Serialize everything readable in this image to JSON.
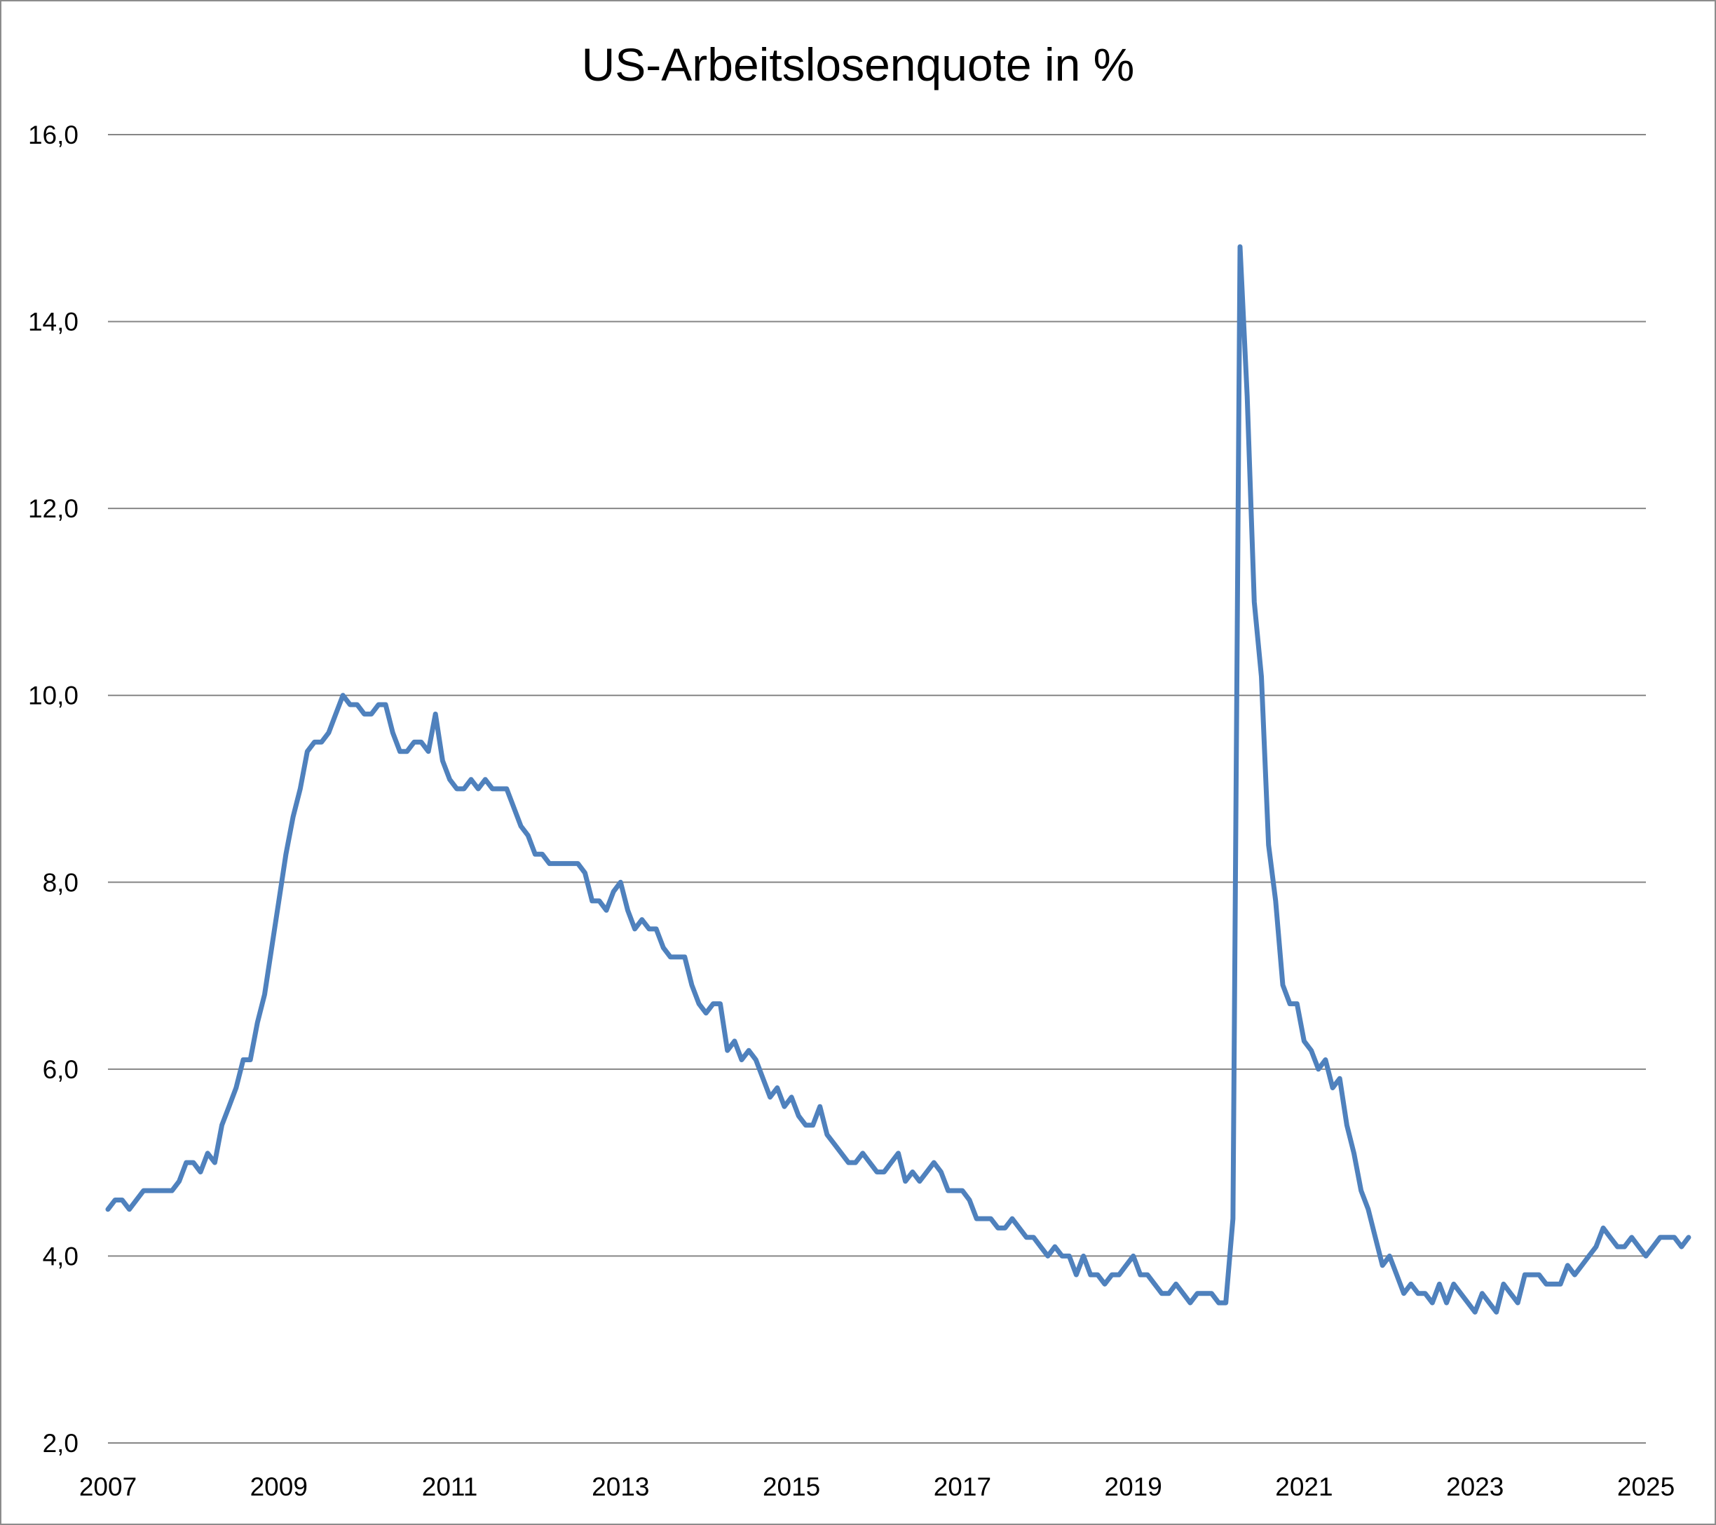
{
  "chart_data": {
    "type": "line",
    "title": "US-Arbeitslosenquote in %",
    "xlabel": "",
    "ylabel": "",
    "xlim": [
      2007,
      2025
    ],
    "ylim": [
      2,
      16
    ],
    "x_ticks": [
      "2007",
      "2009",
      "2011",
      "2013",
      "2015",
      "2017",
      "2019",
      "2021",
      "2023",
      "2025"
    ],
    "y_ticks": [
      "2,0",
      "4,0",
      "6,0",
      "8,0",
      "10,0",
      "12,0",
      "14,0",
      "16,0"
    ],
    "grid": true,
    "legend": "none",
    "series_color": "#4f81bd",
    "grid_color": "#868686",
    "series": [
      {
        "start_year": 2007,
        "step": "monthly",
        "values": [
          4.5,
          4.6,
          4.6,
          4.5,
          4.6,
          4.7,
          4.7,
          4.7,
          4.7,
          4.7,
          4.8,
          5.0,
          5.0,
          4.9,
          5.1,
          5.0,
          5.4,
          5.6,
          5.8,
          6.1,
          6.1,
          6.5,
          6.8,
          7.3,
          7.8,
          8.3,
          8.7,
          9.0,
          9.4,
          9.5,
          9.5,
          9.6,
          9.8,
          10.0,
          9.9,
          9.9,
          9.8,
          9.8,
          9.9,
          9.9,
          9.6,
          9.4,
          9.4,
          9.5,
          9.5,
          9.4,
          9.8,
          9.3,
          9.1,
          9.0,
          9.0,
          9.1,
          9.0,
          9.1,
          9.0,
          9.0,
          9.0,
          8.8,
          8.6,
          8.5,
          8.3,
          8.3,
          8.2,
          8.2,
          8.2,
          8.2,
          8.2,
          8.1,
          7.8,
          7.8,
          7.7,
          7.9,
          8.0,
          7.7,
          7.5,
          7.6,
          7.5,
          7.5,
          7.3,
          7.2,
          7.2,
          7.2,
          6.9,
          6.7,
          6.6,
          6.7,
          6.7,
          6.2,
          6.3,
          6.1,
          6.2,
          6.1,
          5.9,
          5.7,
          5.8,
          5.6,
          5.7,
          5.5,
          5.4,
          5.4,
          5.6,
          5.3,
          5.2,
          5.1,
          5.0,
          5.0,
          5.1,
          5.0,
          4.9,
          4.9,
          5.0,
          5.1,
          4.8,
          4.9,
          4.8,
          4.9,
          5.0,
          4.9,
          4.7,
          4.7,
          4.7,
          4.6,
          4.4,
          4.4,
          4.4,
          4.3,
          4.3,
          4.4,
          4.3,
          4.2,
          4.2,
          4.1,
          4.0,
          4.1,
          4.0,
          4.0,
          3.8,
          4.0,
          3.8,
          3.8,
          3.7,
          3.8,
          3.8,
          3.9,
          4.0,
          3.8,
          3.8,
          3.7,
          3.6,
          3.6,
          3.7,
          3.6,
          3.5,
          3.6,
          3.6,
          3.6,
          3.5,
          3.5,
          4.4,
          14.8,
          13.2,
          11.0,
          10.2,
          8.4,
          7.8,
          6.9,
          6.7,
          6.7,
          6.3,
          6.2,
          6.0,
          6.1,
          5.8,
          5.9,
          5.4,
          5.1,
          4.7,
          4.5,
          4.2,
          3.9,
          4.0,
          3.8,
          3.6,
          3.7,
          3.6,
          3.6,
          3.5,
          3.7,
          3.5,
          3.7,
          3.6,
          3.5,
          3.4,
          3.6,
          3.5,
          3.4,
          3.7,
          3.6,
          3.5,
          3.8,
          3.8,
          3.8,
          3.7,
          3.7,
          3.7,
          3.9,
          3.8,
          3.9,
          4.0,
          4.1,
          4.3,
          4.2,
          4.1,
          4.1,
          4.2,
          4.1,
          4.0,
          4.1,
          4.2,
          4.2,
          4.2,
          4.1,
          4.2
        ]
      }
    ]
  }
}
